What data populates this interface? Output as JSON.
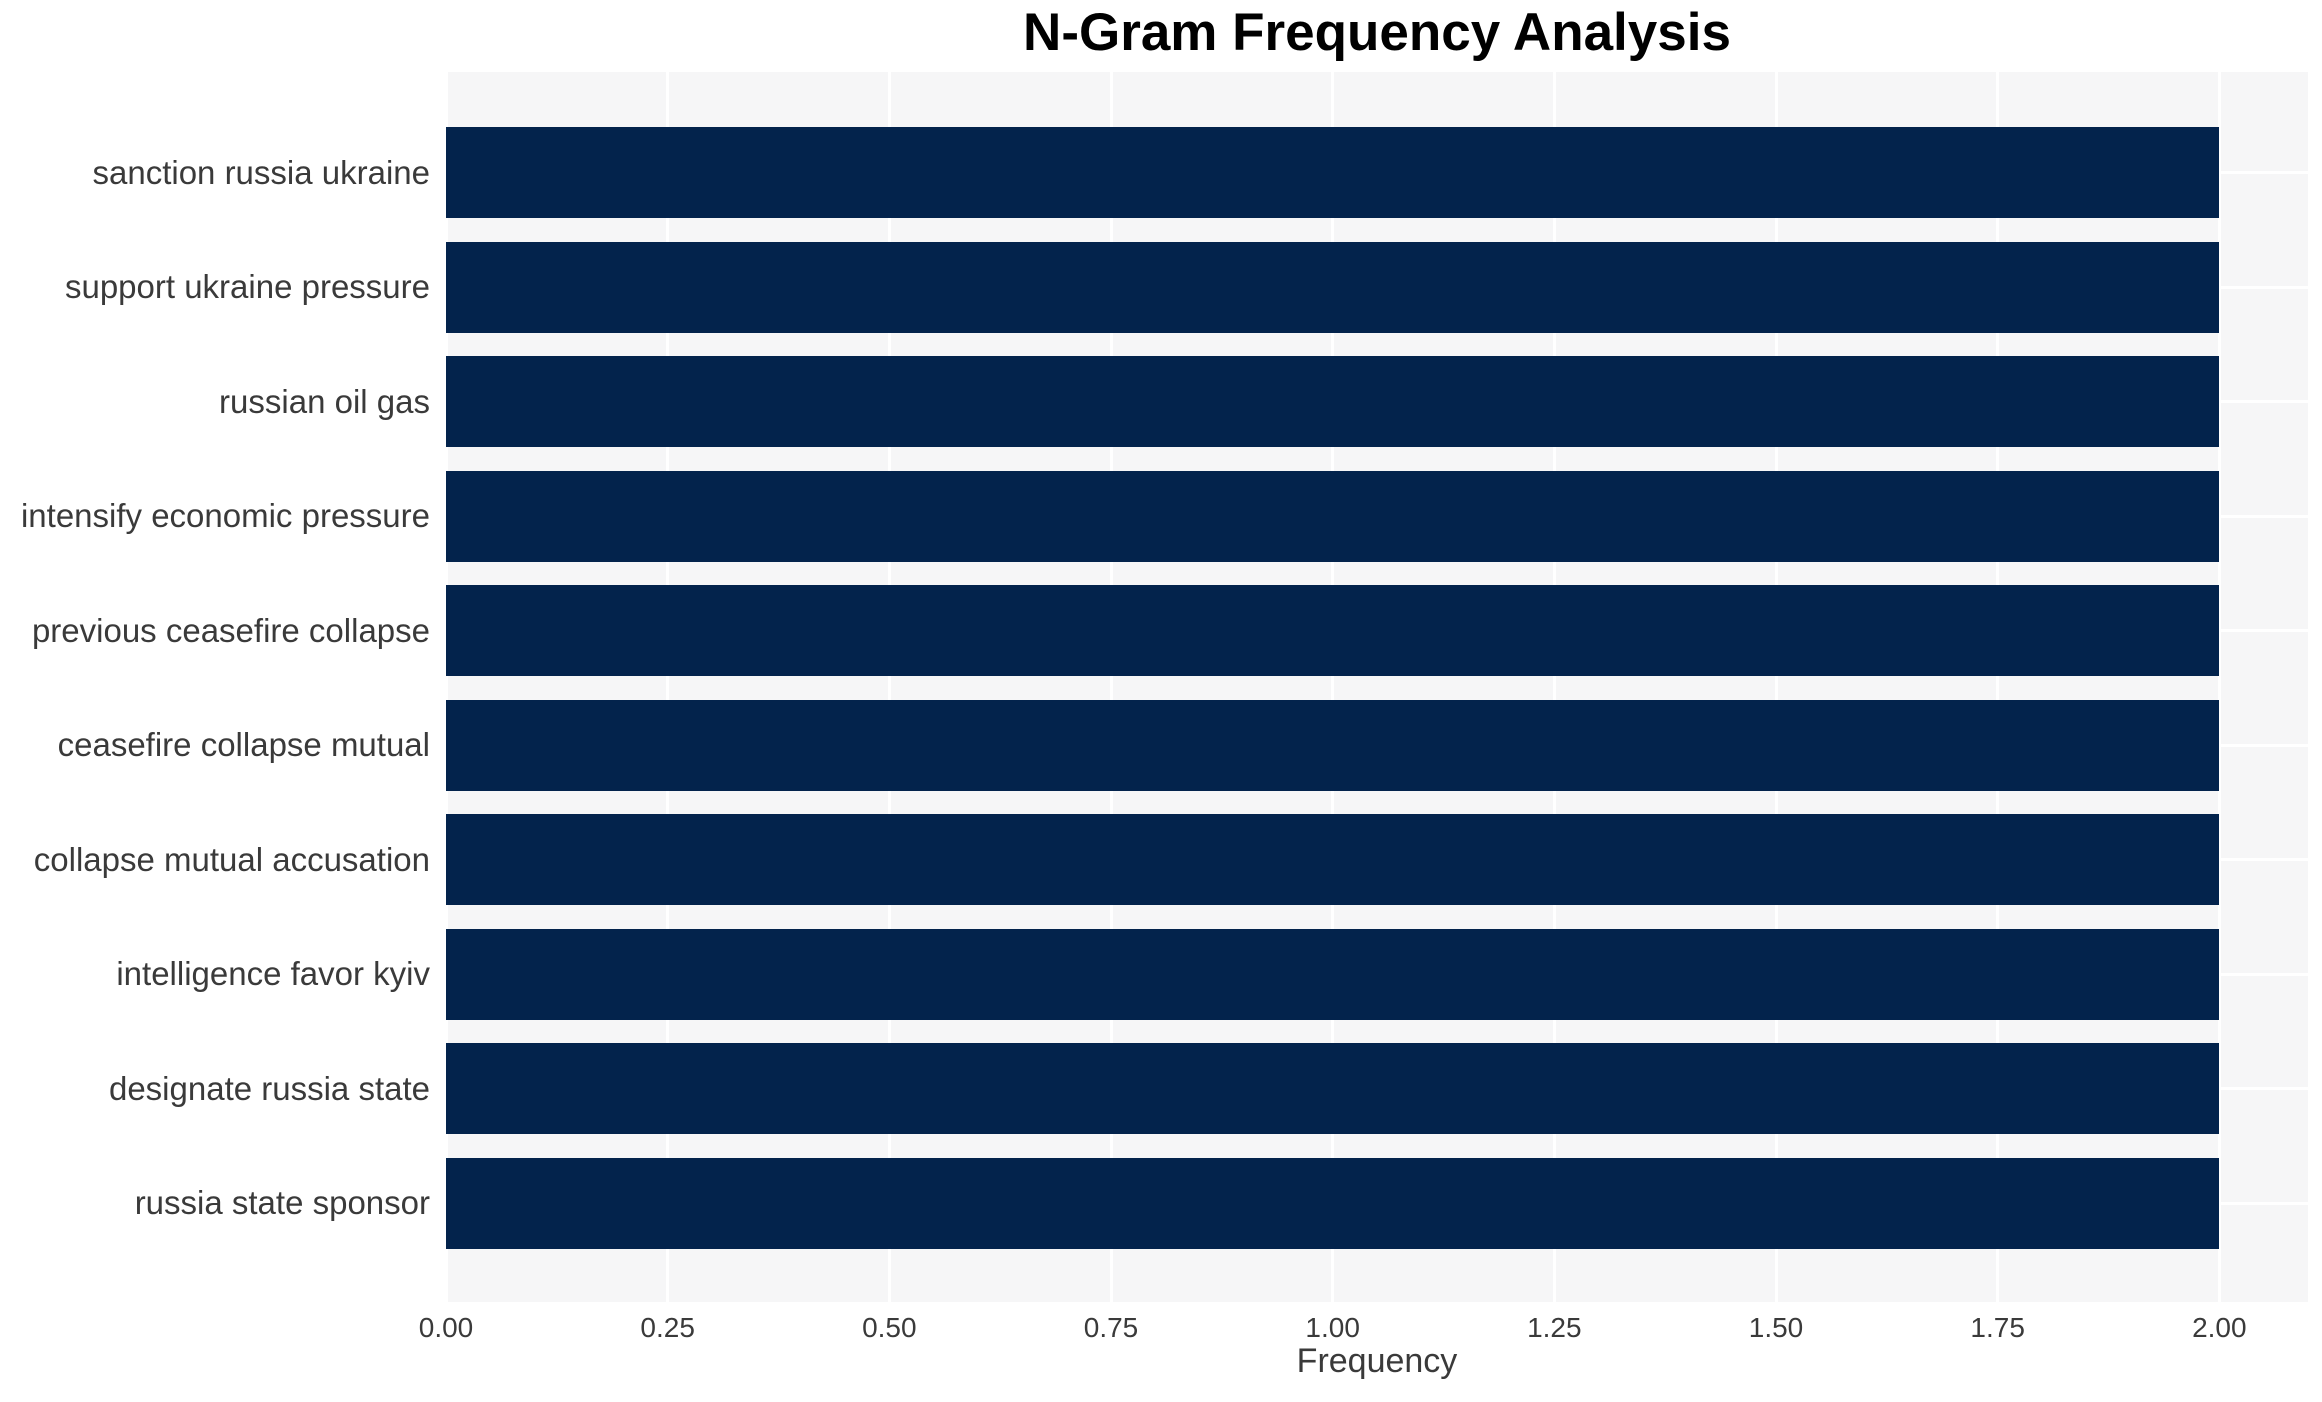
{
  "chart_data": {
    "type": "bar",
    "orientation": "horizontal",
    "title": "N-Gram Frequency Analysis",
    "xlabel": "Frequency",
    "ylabel": "",
    "categories": [
      "sanction russia ukraine",
      "support ukraine pressure",
      "russian oil gas",
      "intensify economic pressure",
      "previous ceasefire collapse",
      "ceasefire collapse mutual",
      "collapse mutual accusation",
      "intelligence favor kyiv",
      "designate russia state",
      "russia state sponsor"
    ],
    "values": [
      2,
      2,
      2,
      2,
      2,
      2,
      2,
      2,
      2,
      2
    ],
    "xlim": [
      0,
      2.1
    ],
    "xticks": [
      0.0,
      0.25,
      0.5,
      0.75,
      1.0,
      1.25,
      1.5,
      1.75,
      2.0
    ],
    "xtick_labels": [
      "0.00",
      "0.25",
      "0.50",
      "0.75",
      "1.00",
      "1.25",
      "1.50",
      "1.75",
      "2.00"
    ],
    "grid": true,
    "legend": false,
    "colors": {
      "bar": "#03234c",
      "plot_background": "#f6f6f7",
      "gridline": "#ffffff",
      "text": "#3a3a3a",
      "title": "#000000"
    }
  }
}
